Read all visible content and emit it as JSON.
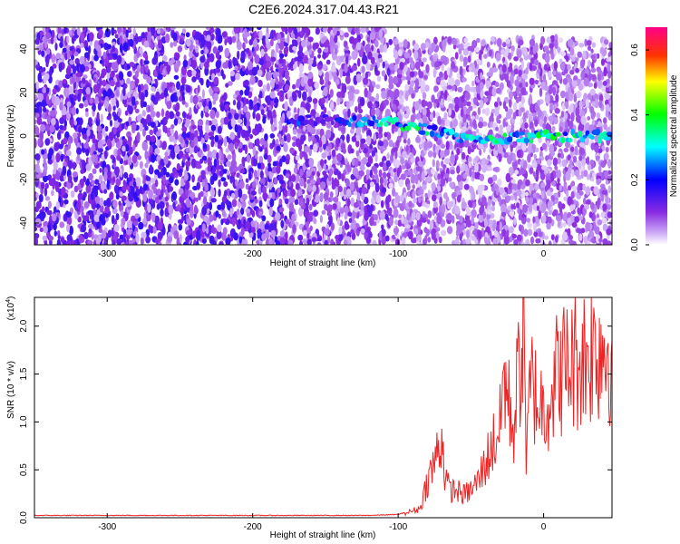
{
  "title": "C2E6.2024.317.04.43.R21",
  "chart_data": [
    {
      "type": "heatmap",
      "title": "C2E6.2024.317.04.43.R21",
      "xlabel": "Height of straight line (km)",
      "ylabel": "Frequency (Hz)",
      "xlim": [
        -350,
        47
      ],
      "ylim": [
        -50,
        50
      ],
      "x_ticks": [
        -300,
        -200,
        -100,
        0
      ],
      "y_ticks": [
        -40,
        -20,
        0,
        20,
        40
      ],
      "x_tick_labels": [
        "-300",
        "-200",
        "-100",
        "0"
      ],
      "y_tick_labels": [
        "-40",
        "-20",
        "0",
        "20",
        "40"
      ],
      "colorbar": {
        "label": "Normalized spectral amplitude",
        "range": [
          0,
          0.67
        ],
        "ticks": [
          0.0,
          0.2,
          0.4,
          0.6
        ],
        "tick_labels": [
          "0.0",
          "0.2",
          "0.4",
          "0.6"
        ],
        "colors": [
          "#ffffff",
          "#8a2be2",
          "#0000ff",
          "#00ffff",
          "#00ff00",
          "#ffff00",
          "#ff8000",
          "#ff0000",
          "#ff00aa"
        ]
      },
      "regions": [
        {
          "x_range": [
            -350,
            -175
          ],
          "freq_range": [
            -50,
            50
          ],
          "level": 0.1
        },
        {
          "x_range": [
            -175,
            -105
          ],
          "freq_range": [
            -50,
            50
          ],
          "level": 0.08
        },
        {
          "x_range": [
            -105,
            47
          ],
          "freq_range": [
            -50,
            45
          ],
          "level": 0.06
        }
      ],
      "signal_track": {
        "x": [
          -175,
          -150,
          -105,
          -80,
          -50,
          -20,
          0,
          20,
          47
        ],
        "freq": [
          7,
          8,
          6,
          3,
          -2,
          -1,
          0,
          0,
          0
        ],
        "amplitude": [
          0.2,
          0.15,
          0.3,
          0.3,
          0.28,
          0.3,
          0.32,
          0.3,
          0.28
        ]
      }
    },
    {
      "type": "line",
      "xlabel": "Height of straight line (km)",
      "ylabel": "SNR (10 * v/v)",
      "y_multiplier_label": "(x10",
      "y_multiplier_exp": "4",
      "xlim": [
        -350,
        47
      ],
      "ylim": [
        0,
        2.3
      ],
      "x_ticks": [
        -300,
        -200,
        -100,
        0
      ],
      "y_ticks": [
        0.0,
        0.5,
        1.0,
        1.5,
        2.0
      ],
      "x_tick_labels": [
        "-300",
        "-200",
        "-100",
        "0"
      ],
      "y_tick_labels": [
        "0.0",
        "0.5",
        "1.0",
        "1.5",
        "2.0"
      ],
      "series": [
        {
          "color": "#ee2222",
          "x": [
            -350,
            -300,
            -250,
            -200,
            -160,
            -120,
            -100,
            -95,
            -85,
            -80,
            -75,
            -70,
            -68,
            -65,
            -60,
            -55,
            -50,
            -45,
            -40,
            -35,
            -30,
            -27,
            -25,
            -22,
            -20,
            -18,
            -15,
            -13,
            -12,
            -10,
            -8,
            -5,
            0,
            5,
            10,
            20,
            30,
            40,
            47
          ],
          "y": [
            0.02,
            0.02,
            0.02,
            0.02,
            0.02,
            0.02,
            0.03,
            0.05,
            0.1,
            0.4,
            0.6,
            0.9,
            0.5,
            0.3,
            0.3,
            0.25,
            0.3,
            0.4,
            0.6,
            0.8,
            1.0,
            1.6,
            1.3,
            1.1,
            1.0,
            1.5,
            1.9,
            2.3,
            0.5,
            1.2,
            1.5,
            1.3,
            1.2,
            1.4,
            1.6,
            1.7,
            1.8,
            1.9,
            1.85
          ]
        }
      ]
    }
  ]
}
